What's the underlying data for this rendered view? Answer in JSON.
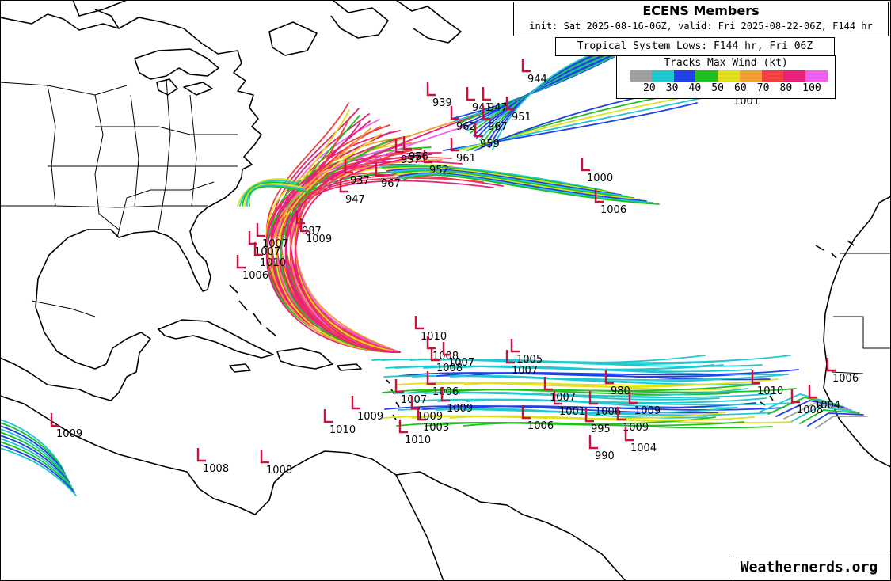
{
  "header": {
    "title": "ECENS Members",
    "subtitle": "init: Sat 2025-08-16-06Z, valid: Fri 2025-08-22-06Z, F144 hr",
    "lows_label": "Tropical System Lows: F144 hr, Fri 06Z"
  },
  "legend": {
    "title": "Tracks Max Wind (kt)",
    "colors": [
      "#a0a0a0",
      "#20c8d0",
      "#2040e8",
      "#20c020",
      "#e0e020",
      "#f0a030",
      "#f04040",
      "#e8207a",
      "#f060f0"
    ],
    "ticks": [
      "20",
      "30",
      "40",
      "50",
      "60",
      "70",
      "80",
      "100"
    ]
  },
  "credit": "Weathernerds.org",
  "lows": [
    {
      "p": "944"
    },
    {
      "p": "939"
    },
    {
      "p": "941"
    },
    {
      "p": "947"
    },
    {
      "p": "951"
    },
    {
      "p": "967"
    },
    {
      "p": "962"
    },
    {
      "p": "959"
    },
    {
      "p": "961"
    },
    {
      "p": "952"
    },
    {
      "p": "956"
    },
    {
      "p": "957"
    },
    {
      "p": "967"
    },
    {
      "p": "947"
    },
    {
      "p": "937"
    },
    {
      "p": "1001"
    },
    {
      "p": "1000"
    },
    {
      "p": "1006"
    },
    {
      "p": "1007"
    },
    {
      "p": "987"
    },
    {
      "p": "1009"
    },
    {
      "p": "1007"
    },
    {
      "p": "1010"
    },
    {
      "p": "1006"
    },
    {
      "p": "1010"
    },
    {
      "p": "1008"
    },
    {
      "p": "1007"
    },
    {
      "p": "1005"
    },
    {
      "p": "1007"
    },
    {
      "p": "1006"
    },
    {
      "p": "1008"
    },
    {
      "p": "1007"
    },
    {
      "p": "1009"
    },
    {
      "p": "1009"
    },
    {
      "p": "1003"
    },
    {
      "p": "1010"
    },
    {
      "p": "1010"
    },
    {
      "p": "1009"
    },
    {
      "p": "1006"
    },
    {
      "p": "1001"
    },
    {
      "p": "980"
    },
    {
      "p": "1007"
    },
    {
      "p": "1006"
    },
    {
      "p": "1009"
    },
    {
      "p": "995"
    },
    {
      "p": "1009"
    },
    {
      "p": "990"
    },
    {
      "p": "1004"
    },
    {
      "p": "1010"
    },
    {
      "p": "1006"
    },
    {
      "p": "1008"
    },
    {
      "p": "1004"
    },
    {
      "p": "1009"
    },
    {
      "p": "1008"
    },
    {
      "p": "1008"
    }
  ]
}
